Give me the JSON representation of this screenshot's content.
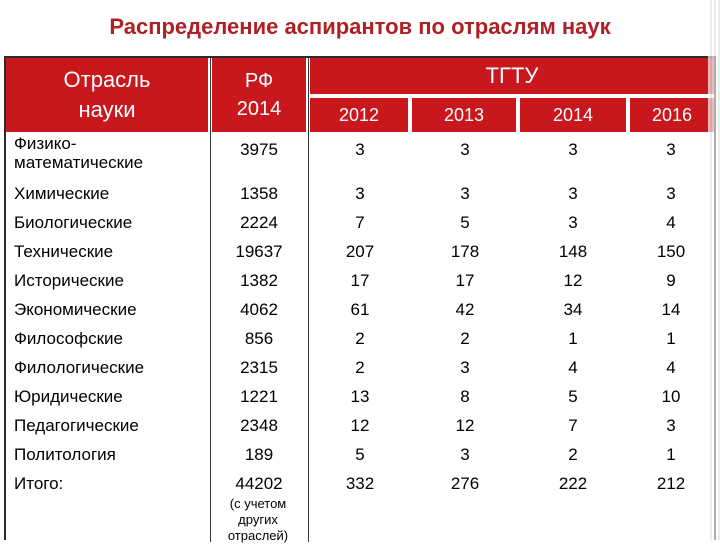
{
  "title": "Распределение аспирантов по отраслям наук",
  "header": {
    "field_line1": "Отрасль",
    "field_line2": "науки",
    "rf_line1": "РФ",
    "rf_line2": "2014",
    "tgtu": "ТГТУ",
    "years": [
      "2012",
      "2013",
      "2014",
      "2016"
    ]
  },
  "rows": [
    {
      "name_line1": "Физико-",
      "name_line2": "математические",
      "rf": "3975",
      "v": [
        "3",
        "3",
        "3",
        "3"
      ]
    },
    {
      "name_line1": "Химические",
      "name_line2": "",
      "rf": "1358",
      "v": [
        "3",
        "3",
        "3",
        "3"
      ]
    },
    {
      "name_line1": "Биологические",
      "name_line2": "",
      "rf": "2224",
      "v": [
        "7",
        "5",
        "3",
        "4"
      ]
    },
    {
      "name_line1": "Технические",
      "name_line2": "",
      "rf": "19637",
      "v": [
        "207",
        "178",
        "148",
        "150"
      ]
    },
    {
      "name_line1": "Исторические",
      "name_line2": "",
      "rf": "1382",
      "v": [
        "17",
        "17",
        "12",
        "9"
      ]
    },
    {
      "name_line1": "Экономические",
      "name_line2": "",
      "rf": "4062",
      "v": [
        "61",
        "42",
        "34",
        "14"
      ]
    },
    {
      "name_line1": "Философские",
      "name_line2": "",
      "rf": "856",
      "v": [
        "2",
        "2",
        "1",
        "1"
      ]
    },
    {
      "name_line1": "Филологические",
      "name_line2": "",
      "rf": "2315",
      "v": [
        "2",
        "3",
        "4",
        "4"
      ]
    },
    {
      "name_line1": "Юридические",
      "name_line2": "",
      "rf": "1221",
      "v": [
        "13",
        "8",
        "5",
        "10"
      ]
    },
    {
      "name_line1": "Педагогические",
      "name_line2": "",
      "rf": "2348",
      "v": [
        "12",
        "12",
        "7",
        "3"
      ]
    },
    {
      "name_line1": "Политология",
      "name_line2": "",
      "rf": "189",
      "v": [
        "5",
        "3",
        "2",
        "1"
      ]
    },
    {
      "name_line1": "Итого:",
      "name_line2": "",
      "rf": "44202",
      "v": [
        "332",
        "276",
        "222",
        "212"
      ]
    }
  ],
  "total_note_line1": "(с учетом",
  "total_note_line2": "других",
  "total_note_line3": "отраслей)",
  "colors": {
    "title": "#b01f24",
    "header_bg": "#c8171d",
    "header_text": "#ffffff"
  }
}
